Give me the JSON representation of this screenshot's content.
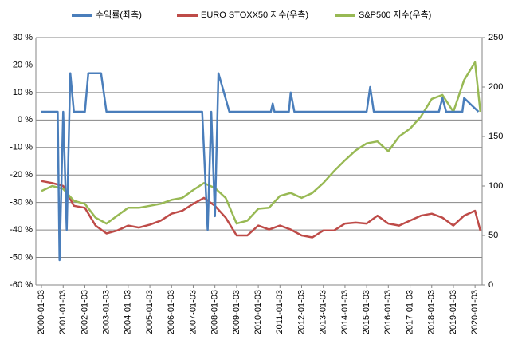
{
  "chart_data": {
    "type": "line",
    "xticks": [
      "2000-01-03",
      "2001-01-03",
      "2002-01-03",
      "2003-01-03",
      "2004-01-03",
      "2005-01-03",
      "2006-01-03",
      "2007-01-03",
      "2008-01-03",
      "2009-01-03",
      "2010-01-03",
      "2011-01-03",
      "2012-01-03",
      "2013-01-03",
      "2014-01-03",
      "2015-01-03",
      "2016-01-03",
      "2017-01-03",
      "2018-01-03",
      "2019-01-03",
      "2020-01-03"
    ],
    "xlim": [
      "1999-10-01",
      "2020-05-01"
    ],
    "ylim": [
      -60,
      30
    ],
    "yticks": [
      {
        "value": -60,
        "label": "-60 %"
      },
      {
        "value": -50,
        "label": "-50 %"
      },
      {
        "value": -40,
        "label": "-40 %"
      },
      {
        "value": -30,
        "label": "-30 %"
      },
      {
        "value": -20,
        "label": "-20 %"
      },
      {
        "value": -10,
        "label": "-10 %"
      },
      {
        "value": 0,
        "label": "0 %"
      },
      {
        "value": 10,
        "label": "10 %"
      },
      {
        "value": 20,
        "label": "20 %"
      },
      {
        "value": 30,
        "label": "30 %"
      }
    ],
    "y2lim": [
      0,
      250
    ],
    "y2ticks": [
      0,
      50,
      100,
      150,
      200,
      250
    ],
    "grid": true,
    "legend": "top",
    "series": [
      {
        "name": "수익률(좌측)",
        "color": "#4a7ebb",
        "axis": "y",
        "x": [
          "2000-01-03",
          "2000-10-03",
          "2000-11-03",
          "2001-01-03",
          "2001-03-03",
          "2001-05-03",
          "2001-07-03",
          "2002-01-03",
          "2002-03-03",
          "2002-10-03",
          "2003-01-03",
          "2007-06-03",
          "2007-09-03",
          "2007-11-03",
          "2008-01-03",
          "2008-03-03",
          "2008-06-03",
          "2008-09-03",
          "2010-08-03",
          "2010-09-03",
          "2010-10-03",
          "2011-06-03",
          "2011-07-03",
          "2011-09-03",
          "2015-01-03",
          "2015-03-03",
          "2015-05-03",
          "2018-05-03",
          "2018-07-03",
          "2018-09-03",
          "2019-06-03",
          "2019-07-03",
          "2020-03-01"
        ],
        "values": [
          3,
          3,
          -51,
          3,
          -40,
          17,
          3,
          3,
          17,
          17,
          3,
          3,
          -40,
          3,
          -35,
          17,
          10,
          3,
          3,
          6,
          3,
          3,
          10,
          3,
          3,
          12,
          3,
          3,
          8,
          3,
          3,
          8,
          3
        ]
      },
      {
        "name": "EURO STOXX50 지수(우측)",
        "color": "#be4b48",
        "axis": "y2",
        "x": [
          "2000-01-03",
          "2000-07-03",
          "2001-01-03",
          "2001-07-03",
          "2002-01-03",
          "2002-07-03",
          "2003-01-03",
          "2003-07-03",
          "2004-01-03",
          "2004-07-03",
          "2005-01-03",
          "2005-07-03",
          "2006-01-03",
          "2006-07-03",
          "2007-01-03",
          "2007-07-03",
          "2008-01-03",
          "2008-07-03",
          "2009-01-03",
          "2009-07-03",
          "2010-01-03",
          "2010-07-03",
          "2011-01-03",
          "2011-07-03",
          "2012-01-03",
          "2012-07-03",
          "2013-01-03",
          "2013-07-03",
          "2014-01-03",
          "2014-07-03",
          "2015-01-03",
          "2015-07-03",
          "2016-01-03",
          "2016-07-03",
          "2017-01-03",
          "2017-07-03",
          "2018-01-03",
          "2018-07-03",
          "2019-01-03",
          "2019-07-03",
          "2020-01-03",
          "2020-04-01"
        ],
        "values": [
          105,
          103,
          100,
          80,
          78,
          60,
          52,
          55,
          60,
          58,
          61,
          65,
          72,
          75,
          82,
          88,
          80,
          68,
          50,
          50,
          60,
          56,
          60,
          56,
          50,
          48,
          55,
          55,
          62,
          63,
          62,
          70,
          62,
          60,
          65,
          70,
          72,
          68,
          60,
          70,
          75,
          55
        ]
      },
      {
        "name": "S&P500 지수(우측)",
        "color": "#98b954",
        "axis": "y2",
        "x": [
          "2000-01-03",
          "2000-07-03",
          "2001-01-03",
          "2001-07-03",
          "2002-01-03",
          "2002-07-03",
          "2003-01-03",
          "2003-07-03",
          "2004-01-03",
          "2004-07-03",
          "2005-01-03",
          "2005-07-03",
          "2006-01-03",
          "2006-07-03",
          "2007-01-03",
          "2007-07-03",
          "2008-01-03",
          "2008-07-03",
          "2009-01-03",
          "2009-07-03",
          "2010-01-03",
          "2010-07-03",
          "2011-01-03",
          "2011-07-03",
          "2012-01-03",
          "2012-07-03",
          "2013-01-03",
          "2013-07-03",
          "2014-01-03",
          "2014-07-03",
          "2015-01-03",
          "2015-07-03",
          "2016-01-03",
          "2016-07-03",
          "2017-01-03",
          "2017-07-03",
          "2018-01-03",
          "2018-07-03",
          "2019-01-03",
          "2019-07-03",
          "2020-01-03",
          "2020-04-01"
        ],
        "values": [
          95,
          100,
          97,
          85,
          82,
          68,
          62,
          70,
          78,
          78,
          80,
          82,
          86,
          88,
          96,
          103,
          98,
          88,
          62,
          65,
          77,
          78,
          90,
          93,
          88,
          93,
          103,
          115,
          126,
          136,
          143,
          145,
          135,
          150,
          158,
          170,
          188,
          192,
          175,
          207,
          225,
          175
        ]
      }
    ]
  }
}
